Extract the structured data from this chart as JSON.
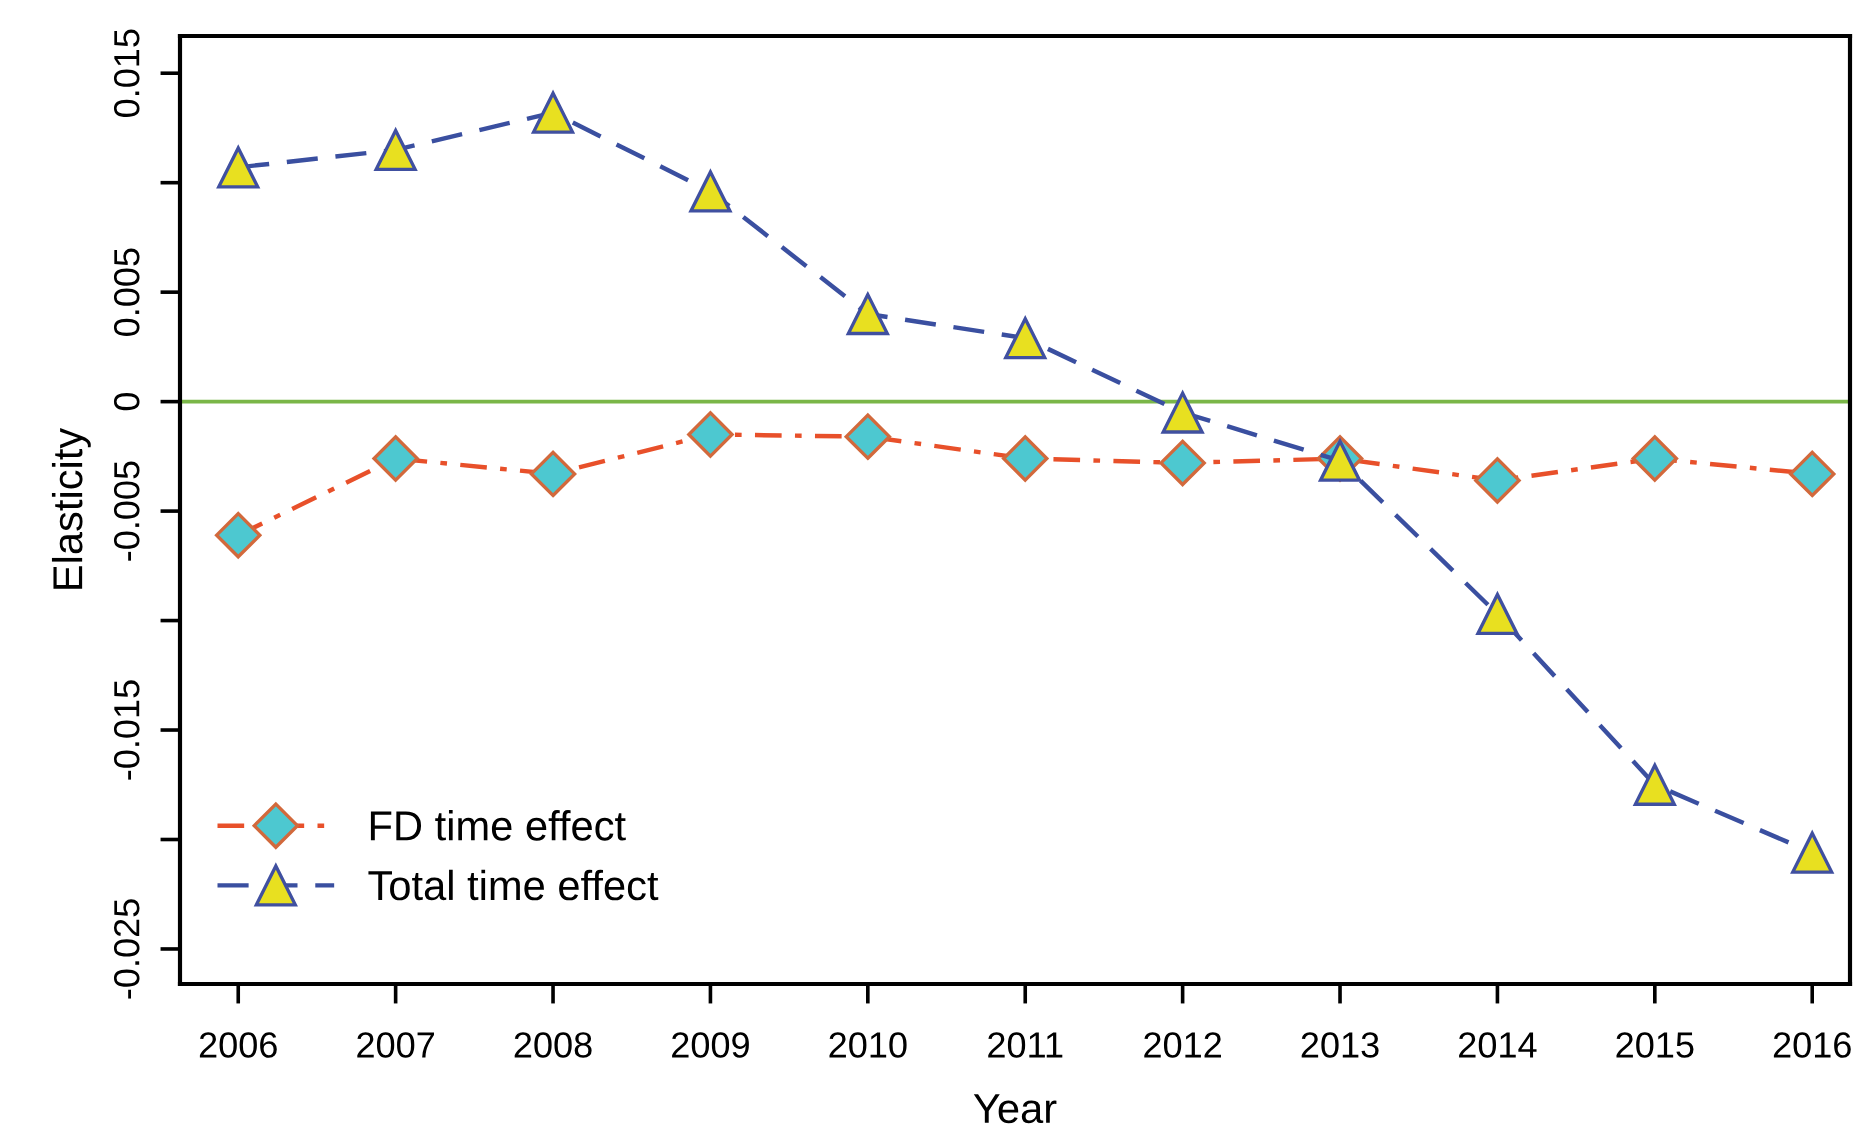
{
  "chart_data": {
    "type": "line",
    "xlabel": "Year",
    "ylabel": "Elasticity",
    "x": [
      2006,
      2007,
      2008,
      2009,
      2010,
      2011,
      2012,
      2013,
      2014,
      2015,
      2016
    ],
    "series": [
      {
        "name": "FD time effect",
        "color": "#e8502a",
        "marker": "diamond",
        "line_style": "dotted",
        "values": [
          -0.0061,
          -0.0026,
          -0.0033,
          -0.0015,
          -0.0016,
          -0.0026,
          -0.0028,
          -0.0026,
          -0.0036,
          -0.0026,
          -0.0033
        ]
      },
      {
        "name": "Total time effect",
        "color": "#3a4fa0",
        "marker": "triangle",
        "line_style": "dashed",
        "values": [
          0.0107,
          0.0115,
          0.0132,
          0.0096,
          0.004,
          0.0029,
          -0.0005,
          -0.0027,
          -0.0097,
          -0.0175,
          -0.0206
        ]
      }
    ],
    "xlim": [
      2005.63,
      2016.24
    ],
    "xticks": [
      2006,
      2007,
      2008,
      2009,
      2010,
      2011,
      2012,
      2013,
      2014,
      2015,
      2016
    ],
    "ylim": [
      -0.0266,
      0.0167
    ],
    "yticks": [
      {
        "value": 0.015,
        "label": "0.015"
      },
      {
        "value": 0.01,
        "label": null
      },
      {
        "value": 0.005,
        "label": "0.005"
      },
      {
        "value": 0,
        "label": "0"
      },
      {
        "value": -0.005,
        "label": "-0.005"
      },
      {
        "value": -0.01,
        "label": null
      },
      {
        "value": -0.015,
        "label": "-0.015"
      },
      {
        "value": -0.02,
        "label": null
      },
      {
        "value": -0.025,
        "label": "-0.025"
      }
    ],
    "ref_lines": [
      {
        "axis": "y",
        "value": 0,
        "color": "#7ab648",
        "line_style": "solid"
      }
    ],
    "grid": false,
    "legend": "bottom left"
  }
}
